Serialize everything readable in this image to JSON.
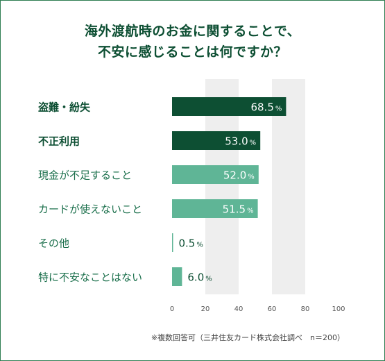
{
  "title_lines": [
    "海外渡航時のお金に関すること​で、",
    "不安に感じることは何ですか？"
  ],
  "footnote": "※複数回答可（三井住友カード株式会社調べ　n＝200）",
  "colors": {
    "title": "#0d4f33",
    "bar_dark": "#0d4f33",
    "bar_light": "#5fb596",
    "grid_band": "#eeeeee",
    "label_dark": "#0d4f33",
    "label_light": "#1a6f4b",
    "value_outside": "#0d4f33"
  },
  "chart_data": {
    "type": "bar",
    "orientation": "horizontal",
    "categories": [
      "盗難・紛失",
      "不正利用",
      "現金が不足すること",
      "カードが使えないこと",
      "その他",
      "特に不安なことはない"
    ],
    "values": [
      68.5,
      53.0,
      52.0,
      51.5,
      0.5,
      6.0
    ],
    "value_labels": [
      "68.5",
      "53.0",
      "52.0",
      "51.5",
      "0.5",
      "6.0"
    ],
    "value_unit": "%",
    "highlight": [
      true,
      true,
      false,
      false,
      false,
      false
    ],
    "xlim": [
      0,
      100
    ],
    "xticks": [
      "0",
      "20",
      "40",
      "60",
      "80",
      "100"
    ],
    "grid": "alternating bands"
  }
}
